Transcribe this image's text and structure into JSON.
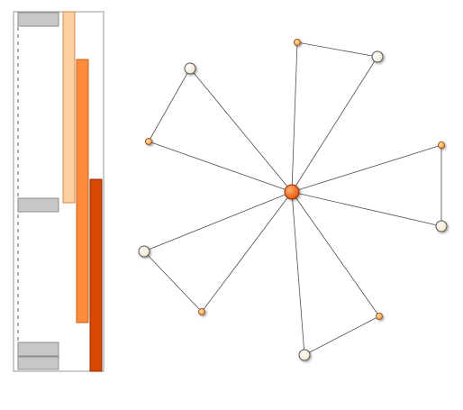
{
  "colors": {
    "panel_border": "#9a9a9a",
    "grey_block_fill": "#c8c8c8",
    "grey_block_stroke": "#8c8c8c",
    "bar_light": "#fdd0a2",
    "bar_mid": "#fd8d3c",
    "bar_dark": "#d94801",
    "hub_fill": "#f16913",
    "small_node_fill": "#fdae6b",
    "white_node_fill": "#fffbf0",
    "edge": "#4d4d4d"
  },
  "left_panel": {
    "grey_blocks": 4,
    "bars": [
      "light",
      "mid",
      "dark"
    ]
  },
  "network": {
    "hub": "hub",
    "nodes": [
      {
        "id": "hub",
        "kind": "hub"
      },
      {
        "id": "n1",
        "kind": "small"
      },
      {
        "id": "n2",
        "kind": "white"
      },
      {
        "id": "n3",
        "kind": "small"
      },
      {
        "id": "n4",
        "kind": "white"
      },
      {
        "id": "n5",
        "kind": "small"
      },
      {
        "id": "n6",
        "kind": "white"
      },
      {
        "id": "n7",
        "kind": "small"
      },
      {
        "id": "n8",
        "kind": "white"
      },
      {
        "id": "n9",
        "kind": "small"
      },
      {
        "id": "n10",
        "kind": "white"
      }
    ],
    "edges": [
      [
        "hub",
        "n1"
      ],
      [
        "hub",
        "n2"
      ],
      [
        "hub",
        "n3"
      ],
      [
        "hub",
        "n4"
      ],
      [
        "hub",
        "n5"
      ],
      [
        "hub",
        "n6"
      ],
      [
        "hub",
        "n7"
      ],
      [
        "hub",
        "n8"
      ],
      [
        "hub",
        "n9"
      ],
      [
        "hub",
        "n10"
      ],
      [
        "n1",
        "n2"
      ],
      [
        "n3",
        "n4"
      ],
      [
        "n5",
        "n6"
      ],
      [
        "n7",
        "n8"
      ],
      [
        "n9",
        "n10"
      ]
    ]
  }
}
